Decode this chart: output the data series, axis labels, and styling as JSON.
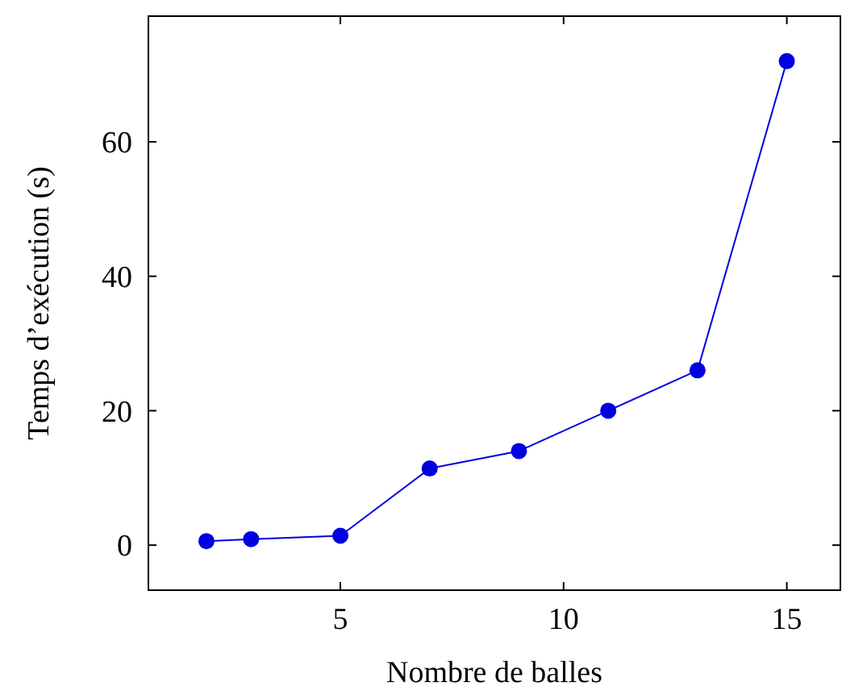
{
  "chart_data": {
    "type": "line",
    "xlabel": "Nombre de balles",
    "ylabel": "Temps d’exécution (s)",
    "x": [
      2,
      3,
      5,
      7,
      9,
      11,
      13,
      15
    ],
    "series": [
      {
        "color": "#0000e0",
        "values": [
          0.6,
          0.9,
          1.4,
          11.4,
          14,
          20,
          26,
          72
        ]
      }
    ],
    "xlim": [
      0.7,
      16.2
    ],
    "ylim": [
      -6.7,
      78.7
    ],
    "xticks": [
      5,
      10,
      15
    ],
    "yticks": [
      0,
      20,
      40,
      60
    ],
    "marker": "circle",
    "line_style": "solid"
  }
}
